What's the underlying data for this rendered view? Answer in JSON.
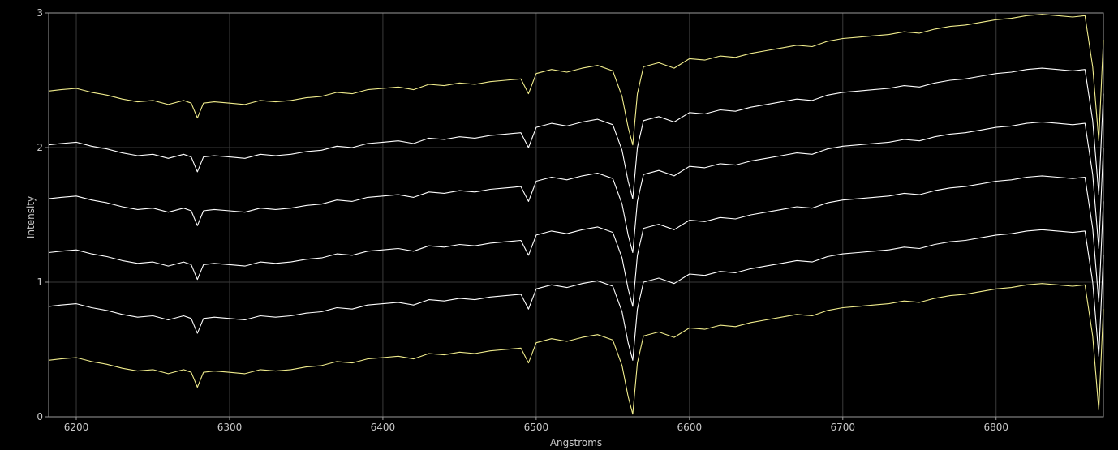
{
  "chart_data": {
    "type": "line",
    "xlabel": "Angstroms",
    "ylabel": "Intensity",
    "xlim": [
      6182,
      6870
    ],
    "ylim": [
      0,
      3
    ],
    "grid": true,
    "x_ticks": [
      6200,
      6300,
      6400,
      6500,
      6600,
      6700,
      6800
    ],
    "y_ticks": [
      0,
      1,
      2,
      3
    ],
    "sample_x": [
      6182,
      6190,
      6200,
      6210,
      6220,
      6230,
      6240,
      6250,
      6260,
      6270,
      6275,
      6279,
      6283,
      6290,
      6300,
      6310,
      6320,
      6330,
      6340,
      6350,
      6360,
      6370,
      6380,
      6390,
      6400,
      6410,
      6420,
      6430,
      6440,
      6450,
      6460,
      6470,
      6480,
      6490,
      6495,
      6500,
      6510,
      6520,
      6530,
      6540,
      6550,
      6556,
      6560,
      6563,
      6566,
      6570,
      6580,
      6590,
      6600,
      6610,
      6620,
      6630,
      6640,
      6650,
      6660,
      6670,
      6680,
      6690,
      6700,
      6710,
      6720,
      6730,
      6740,
      6750,
      6760,
      6770,
      6780,
      6790,
      6800,
      6810,
      6820,
      6830,
      6840,
      6850,
      6858,
      6863,
      6867,
      6870
    ],
    "series": [
      {
        "color": "#f0ec8c",
        "values": [
          2.42,
          2.43,
          2.44,
          2.41,
          2.39,
          2.36,
          2.34,
          2.35,
          2.32,
          2.35,
          2.33,
          2.22,
          2.33,
          2.34,
          2.33,
          2.32,
          2.35,
          2.34,
          2.35,
          2.37,
          2.38,
          2.41,
          2.4,
          2.43,
          2.44,
          2.45,
          2.43,
          2.47,
          2.46,
          2.48,
          2.47,
          2.49,
          2.5,
          2.51,
          2.4,
          2.55,
          2.58,
          2.56,
          2.59,
          2.61,
          2.57,
          2.38,
          2.15,
          2.02,
          2.4,
          2.6,
          2.63,
          2.59,
          2.66,
          2.65,
          2.68,
          2.67,
          2.7,
          2.72,
          2.74,
          2.76,
          2.75,
          2.79,
          2.81,
          2.82,
          2.83,
          2.84,
          2.86,
          2.85,
          2.88,
          2.9,
          2.91,
          2.93,
          2.95,
          2.96,
          2.98,
          2.99,
          2.98,
          2.97,
          2.98,
          2.6,
          2.05,
          2.8
        ]
      },
      {
        "color": "#ffffff",
        "values": [
          2.02,
          2.03,
          2.04,
          2.01,
          1.99,
          1.96,
          1.94,
          1.95,
          1.92,
          1.95,
          1.93,
          1.82,
          1.93,
          1.94,
          1.93,
          1.92,
          1.95,
          1.94,
          1.95,
          1.97,
          1.98,
          2.01,
          2.0,
          2.03,
          2.04,
          2.05,
          2.03,
          2.07,
          2.06,
          2.08,
          2.07,
          2.09,
          2.1,
          2.11,
          2.0,
          2.15,
          2.18,
          2.16,
          2.19,
          2.21,
          2.17,
          1.98,
          1.75,
          1.62,
          2.0,
          2.2,
          2.23,
          2.19,
          2.26,
          2.25,
          2.28,
          2.27,
          2.3,
          2.32,
          2.34,
          2.36,
          2.35,
          2.39,
          2.41,
          2.42,
          2.43,
          2.44,
          2.46,
          2.45,
          2.48,
          2.5,
          2.51,
          2.53,
          2.55,
          2.56,
          2.58,
          2.59,
          2.58,
          2.57,
          2.58,
          2.2,
          1.65,
          2.4
        ]
      },
      {
        "color": "#ffffff",
        "values": [
          1.62,
          1.63,
          1.64,
          1.61,
          1.59,
          1.56,
          1.54,
          1.55,
          1.52,
          1.55,
          1.53,
          1.42,
          1.53,
          1.54,
          1.53,
          1.52,
          1.55,
          1.54,
          1.55,
          1.57,
          1.58,
          1.61,
          1.6,
          1.63,
          1.64,
          1.65,
          1.63,
          1.67,
          1.66,
          1.68,
          1.67,
          1.69,
          1.7,
          1.71,
          1.6,
          1.75,
          1.78,
          1.76,
          1.79,
          1.81,
          1.77,
          1.58,
          1.35,
          1.22,
          1.6,
          1.8,
          1.83,
          1.79,
          1.86,
          1.85,
          1.88,
          1.87,
          1.9,
          1.92,
          1.94,
          1.96,
          1.95,
          1.99,
          2.01,
          2.02,
          2.03,
          2.04,
          2.06,
          2.05,
          2.08,
          2.1,
          2.11,
          2.13,
          2.15,
          2.16,
          2.18,
          2.19,
          2.18,
          2.17,
          2.18,
          1.8,
          1.25,
          2.0
        ]
      },
      {
        "color": "#ffffff",
        "values": [
          1.22,
          1.23,
          1.24,
          1.21,
          1.19,
          1.16,
          1.14,
          1.15,
          1.12,
          1.15,
          1.13,
          1.02,
          1.13,
          1.14,
          1.13,
          1.12,
          1.15,
          1.14,
          1.15,
          1.17,
          1.18,
          1.21,
          1.2,
          1.23,
          1.24,
          1.25,
          1.23,
          1.27,
          1.26,
          1.28,
          1.27,
          1.29,
          1.3,
          1.31,
          1.2,
          1.35,
          1.38,
          1.36,
          1.39,
          1.41,
          1.37,
          1.18,
          0.95,
          0.82,
          1.2,
          1.4,
          1.43,
          1.39,
          1.46,
          1.45,
          1.48,
          1.47,
          1.5,
          1.52,
          1.54,
          1.56,
          1.55,
          1.59,
          1.61,
          1.62,
          1.63,
          1.64,
          1.66,
          1.65,
          1.68,
          1.7,
          1.71,
          1.73,
          1.75,
          1.76,
          1.78,
          1.79,
          1.78,
          1.77,
          1.78,
          1.4,
          0.85,
          1.6
        ]
      },
      {
        "color": "#ffffff",
        "values": [
          0.82,
          0.83,
          0.84,
          0.81,
          0.79,
          0.76,
          0.74,
          0.75,
          0.72,
          0.75,
          0.73,
          0.62,
          0.73,
          0.74,
          0.73,
          0.72,
          0.75,
          0.74,
          0.75,
          0.77,
          0.78,
          0.81,
          0.8,
          0.83,
          0.84,
          0.85,
          0.83,
          0.87,
          0.86,
          0.88,
          0.87,
          0.89,
          0.9,
          0.91,
          0.8,
          0.95,
          0.98,
          0.96,
          0.99,
          1.01,
          0.97,
          0.78,
          0.55,
          0.42,
          0.8,
          1.0,
          1.03,
          0.99,
          1.06,
          1.05,
          1.08,
          1.07,
          1.1,
          1.12,
          1.14,
          1.16,
          1.15,
          1.19,
          1.21,
          1.22,
          1.23,
          1.24,
          1.26,
          1.25,
          1.28,
          1.3,
          1.31,
          1.33,
          1.35,
          1.36,
          1.38,
          1.39,
          1.38,
          1.37,
          1.38,
          1.0,
          0.45,
          1.2
        ]
      },
      {
        "color": "#f0ec8c",
        "values": [
          0.42,
          0.43,
          0.44,
          0.41,
          0.39,
          0.36,
          0.34,
          0.35,
          0.32,
          0.35,
          0.33,
          0.22,
          0.33,
          0.34,
          0.33,
          0.32,
          0.35,
          0.34,
          0.35,
          0.37,
          0.38,
          0.41,
          0.4,
          0.43,
          0.44,
          0.45,
          0.43,
          0.47,
          0.46,
          0.48,
          0.47,
          0.49,
          0.5,
          0.51,
          0.4,
          0.55,
          0.58,
          0.56,
          0.59,
          0.61,
          0.57,
          0.38,
          0.15,
          0.02,
          0.4,
          0.6,
          0.63,
          0.59,
          0.66,
          0.65,
          0.68,
          0.67,
          0.7,
          0.72,
          0.74,
          0.76,
          0.75,
          0.79,
          0.81,
          0.82,
          0.83,
          0.84,
          0.86,
          0.85,
          0.88,
          0.9,
          0.91,
          0.93,
          0.95,
          0.96,
          0.98,
          0.99,
          0.98,
          0.97,
          0.98,
          0.6,
          0.05,
          0.8
        ]
      }
    ]
  }
}
